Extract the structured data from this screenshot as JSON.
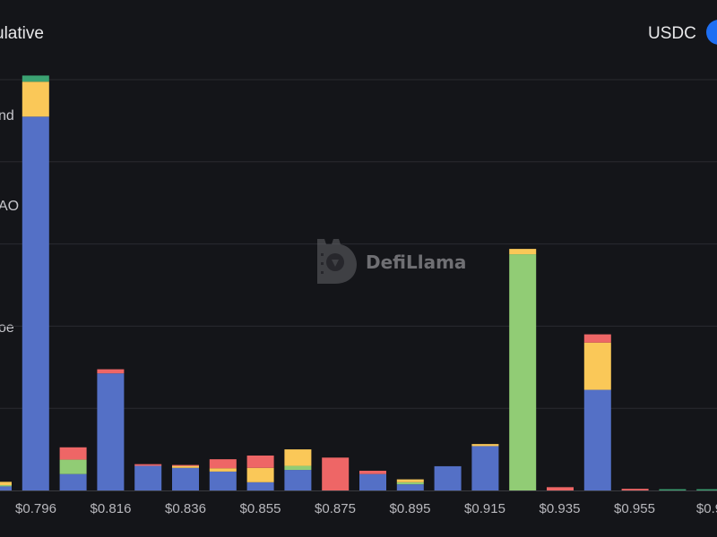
{
  "header": {
    "cumulative_label": "ulative",
    "token_label": "USDC",
    "toggle_color": "#1e6ff3"
  },
  "legend": {
    "label_a": "nd",
    "label_b": "AO",
    "label_c": "oe"
  },
  "watermark": {
    "text": "DefiLlama"
  },
  "colors": {
    "blue": "#5470c6",
    "green": "#91cc75",
    "yellow": "#fac858",
    "red": "#ee6666",
    "teal": "#3ba272",
    "grid": "#2a2b30",
    "axis_text": "#b8b8bd"
  },
  "chart_data": {
    "type": "bar",
    "stacked": true,
    "x_tick_labels": [
      "$0.796",
      "$0.816",
      "$0.836",
      "$0.855",
      "$0.875",
      "$0.895",
      "$0.915",
      "$0.935",
      "$0.955",
      "$0.9"
    ],
    "y_axis_labels_visible": false,
    "grid": true,
    "y_gridline_count": 5,
    "ylim": [
      0,
      100
    ],
    "bars": [
      {
        "blue": 1.0,
        "yellow": 0.8,
        "green": 0.3
      },
      {
        "blue": 91.0,
        "yellow": 8.5,
        "teal": 1.5
      },
      {
        "blue": 4.0,
        "green": 3.5,
        "red": 3.0
      },
      {
        "blue": 28.5,
        "red": 1.0
      },
      {
        "blue": 6.0,
        "red": 0.4
      },
      {
        "blue": 5.5,
        "yellow": 0.5,
        "red": 0.2
      },
      {
        "blue": 4.6,
        "yellow": 0.8,
        "red": 2.2
      },
      {
        "blue": 2.0,
        "yellow": 3.5,
        "red": 3.0
      },
      {
        "blue": 5.0,
        "green": 1.0,
        "yellow": 4.0
      },
      {
        "red": 8.0
      },
      {
        "blue": 4.0,
        "red": 0.8
      },
      {
        "blue": 1.5,
        "green": 0.5,
        "yellow": 0.7
      },
      {
        "blue": 5.9
      },
      {
        "blue": 10.8,
        "yellow": 0.5
      },
      {
        "green": 57.5,
        "yellow": 1.3
      },
      {
        "red": 0.8
      },
      {
        "blue": 24.5,
        "yellow": 11.5,
        "red": 2.0
      },
      {
        "red": 0.4
      },
      {
        "teal": 0.3
      },
      {
        "teal": 0.3
      }
    ]
  }
}
